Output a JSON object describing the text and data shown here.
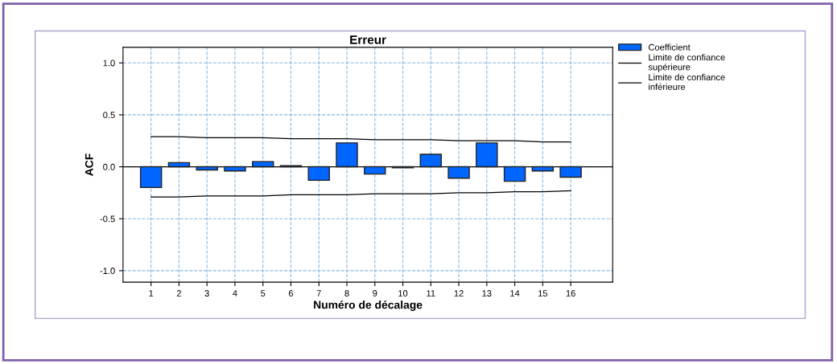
{
  "chart_data": {
    "type": "bar",
    "title": "Erreur",
    "xlabel": "Numéro de décalage",
    "ylabel": "ACF",
    "categories": [
      "1",
      "2",
      "3",
      "4",
      "5",
      "6",
      "7",
      "8",
      "9",
      "10",
      "11",
      "12",
      "13",
      "14",
      "15",
      "16"
    ],
    "series": [
      {
        "name": "Coefficient",
        "color": "#0066ff",
        "values": [
          -0.2,
          0.04,
          -0.03,
          -0.04,
          0.05,
          0.01,
          -0.13,
          0.23,
          -0.07,
          -0.01,
          0.12,
          -0.11,
          0.23,
          -0.14,
          -0.04,
          -0.1
        ]
      },
      {
        "name": "Limite de confiance\nsupérieure",
        "type": "line",
        "color": "#000000",
        "values": [
          0.29,
          0.29,
          0.28,
          0.28,
          0.28,
          0.27,
          0.27,
          0.27,
          0.26,
          0.26,
          0.26,
          0.25,
          0.25,
          0.25,
          0.24,
          0.24
        ]
      },
      {
        "name": "Limite de confiance\ninférieure",
        "type": "line",
        "color": "#000000",
        "values": [
          -0.29,
          -0.29,
          -0.28,
          -0.28,
          -0.28,
          -0.27,
          -0.27,
          -0.27,
          -0.26,
          -0.26,
          -0.26,
          -0.25,
          -0.25,
          -0.24,
          -0.24,
          -0.23
        ]
      }
    ],
    "ylim": [
      -1.11,
      1.15
    ],
    "yticks": [
      {
        "value": -1.0,
        "label": "-1.0"
      },
      {
        "value": -0.5,
        "label": "-0.5"
      },
      {
        "value": 0.0,
        "label": "0.0"
      },
      {
        "value": 0.5,
        "label": "0.5"
      },
      {
        "value": 1.0,
        "label": "1.0"
      }
    ],
    "ref_lines": [
      {
        "axis": "y",
        "value": 0,
        "color": "#000000",
        "line_style": "solid"
      }
    ],
    "grid": true,
    "legend": "top right",
    "marker": "none",
    "line_style": "solid"
  }
}
